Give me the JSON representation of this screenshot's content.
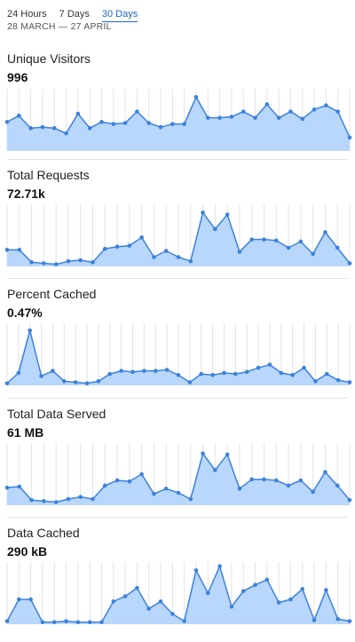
{
  "tabs": [
    {
      "label": "24 Hours",
      "active": false
    },
    {
      "label": "7 Days",
      "active": false
    },
    {
      "label": "30 Days",
      "active": true
    }
  ],
  "date_range": "28 MARCH — 27 APRIL",
  "colors": {
    "accent": "#1f66c2",
    "line": "#3b82dc",
    "fill": "#b9d6fb",
    "grid": "#e4e4e4"
  },
  "panels": [
    {
      "title": "Unique Visitors",
      "value": "996"
    },
    {
      "title": "Total Requests",
      "value": "72.71k"
    },
    {
      "title": "Percent Cached",
      "value": "0.47%"
    },
    {
      "title": "Total Data Served",
      "value": "61 MB"
    },
    {
      "title": "Data Cached",
      "value": "290 kB"
    }
  ],
  "chart_data": [
    {
      "type": "area",
      "title": "Unique Visitors",
      "ylim": [
        0,
        60
      ],
      "series": [
        {
          "values": [
            28,
            34,
            22,
            23,
            22,
            17,
            36,
            22,
            28,
            26,
            27,
            38,
            27,
            23,
            26,
            26,
            52,
            32,
            32,
            33,
            38,
            32,
            45,
            32,
            38,
            31,
            40,
            44,
            38,
            13
          ]
        }
      ]
    },
    {
      "type": "area",
      "title": "Total Requests",
      "ylim": [
        0,
        60
      ],
      "series": [
        {
          "values": [
            16,
            16,
            4,
            3,
            2,
            5,
            6,
            4,
            17,
            19,
            20,
            28,
            9,
            15,
            9,
            5,
            52,
            36,
            50,
            14,
            26,
            26,
            25,
            18,
            24,
            12,
            33,
            18,
            3
          ]
        }
      ]
    },
    {
      "type": "area",
      "title": "Percent Cached",
      "ylim": [
        0,
        60
      ],
      "series": [
        {
          "values": [
            2,
            12,
            53,
            9,
            14,
            4,
            3,
            2,
            4,
            11,
            14,
            13,
            14,
            14,
            15,
            10,
            3,
            11,
            10,
            12,
            11,
            13,
            17,
            20,
            12,
            10,
            17,
            4,
            11,
            5,
            3
          ]
        }
      ]
    },
    {
      "type": "area",
      "title": "Total Data Served",
      "ylim": [
        0,
        60
      ],
      "series": [
        {
          "values": [
            17,
            18,
            5,
            4,
            3,
            6,
            8,
            6,
            19,
            24,
            23,
            30,
            11,
            16,
            12,
            6,
            50,
            34,
            49,
            16,
            25,
            25,
            24,
            19,
            24,
            13,
            32,
            19,
            5
          ]
        }
      ]
    },
    {
      "type": "area",
      "title": "Data Cached",
      "ylim": [
        0,
        60
      ],
      "series": [
        {
          "values": [
            3,
            24,
            24,
            2,
            2,
            3,
            2,
            2,
            2,
            22,
            27,
            35,
            15,
            22,
            10,
            3,
            52,
            30,
            56,
            17,
            32,
            38,
            43,
            21,
            24,
            34,
            4,
            33,
            5,
            3
          ]
        }
      ]
    }
  ]
}
